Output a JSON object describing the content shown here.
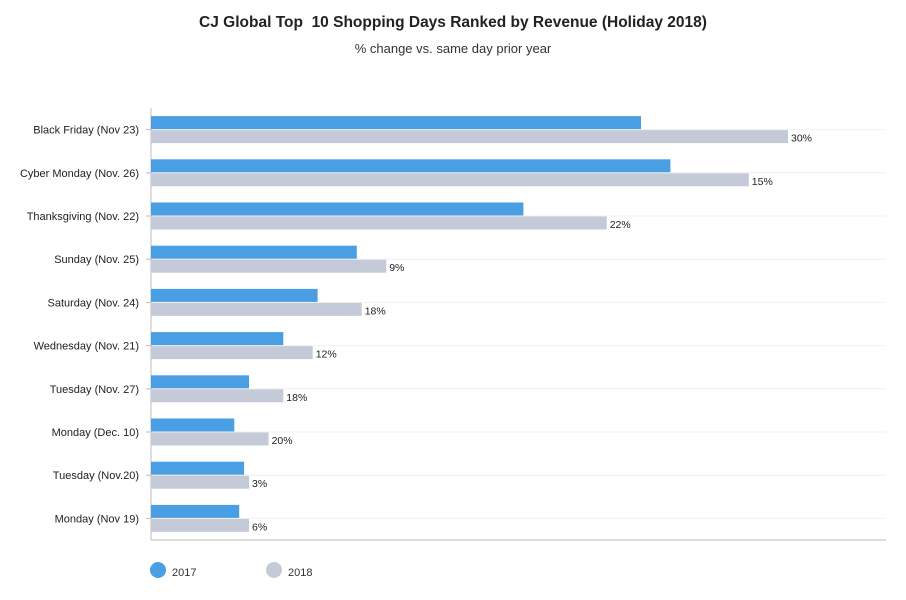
{
  "chart_data": {
    "type": "bar",
    "orientation": "horizontal",
    "title": "CJ Global Top  10 Shopping Days Ranked by Revenue (Holiday 2018)",
    "subtitle": "% change vs. same day prior year",
    "categories": [
      "Black Friday (Nov 23)",
      "Cyber Monday (Nov. 26)",
      "Thanksgiving (Nov. 22)",
      "Sunday (Nov. 25)",
      "Saturday (Nov. 24)",
      "Wednesday (Nov. 21)",
      "Tuesday (Nov. 27)",
      "Monday (Dec. 10)",
      "Tuesday (Nov.20)",
      "Monday (Nov 19)"
    ],
    "series": [
      {
        "name": "2017",
        "color": "#4a9ee3",
        "values": [
          100,
          106,
          76,
          42,
          34,
          27,
          20,
          17,
          19,
          18
        ]
      },
      {
        "name": "2018",
        "color": "#c5cad8",
        "values": [
          130,
          122,
          93,
          48,
          43,
          33,
          27,
          24,
          20,
          20
        ]
      }
    ],
    "data_labels_2018": [
      "30%",
      "15%",
      "22%",
      "9%",
      "18%",
      "12%",
      "18%",
      "20%",
      "3%",
      "6%"
    ],
    "xlim": [
      0,
      150
    ],
    "x_axis_visible": false,
    "grid": "horizontal",
    "legend_position": "bottom-left"
  }
}
